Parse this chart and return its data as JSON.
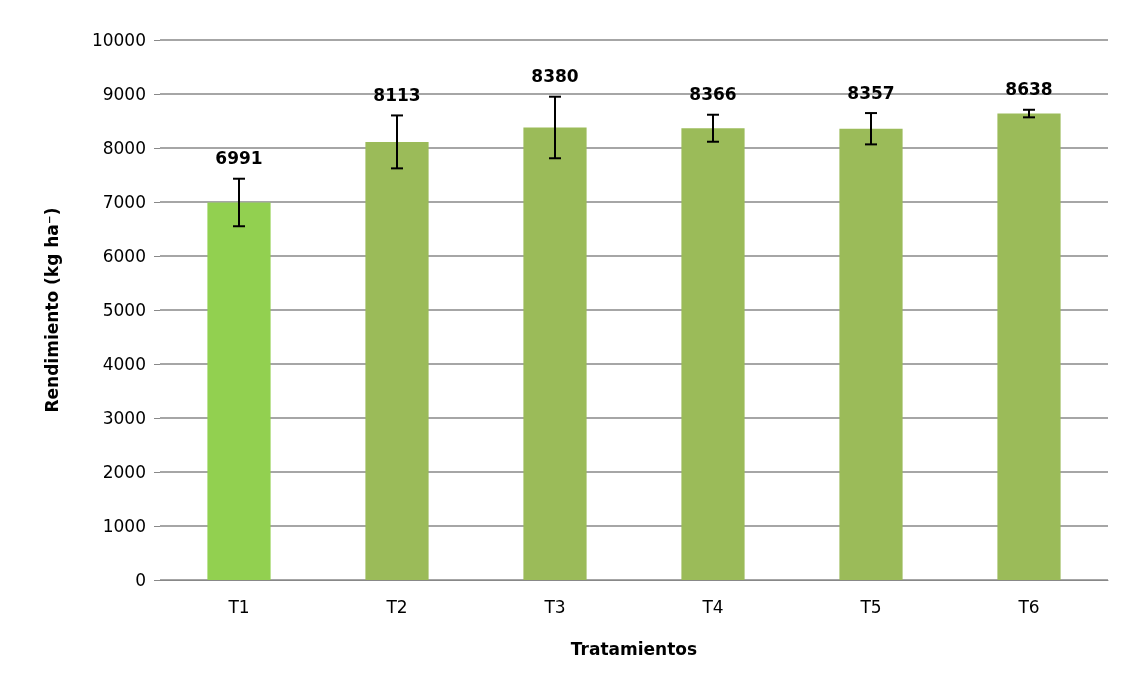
{
  "chart_data": {
    "type": "bar",
    "xlabel": "Tratamientos",
    "ylabel": "Rendimiento (kg ha⁻)",
    "categories": [
      "T1",
      "T2",
      "T3",
      "T4",
      "T5",
      "T6"
    ],
    "values": [
      6991,
      8113,
      8380,
      8366,
      8357,
      8638
    ],
    "colors": [
      "#92d050",
      "#9bbb59",
      "#9bbb59",
      "#9bbb59",
      "#9bbb59",
      "#9bbb59"
    ],
    "errors": [
      440,
      490,
      570,
      250,
      290,
      70
    ],
    "ylim": [
      0,
      10000
    ],
    "yticks": [
      0,
      1000,
      2000,
      3000,
      4000,
      5000,
      6000,
      7000,
      8000,
      9000,
      10000
    ],
    "grid": "y",
    "data_labels": true
  }
}
